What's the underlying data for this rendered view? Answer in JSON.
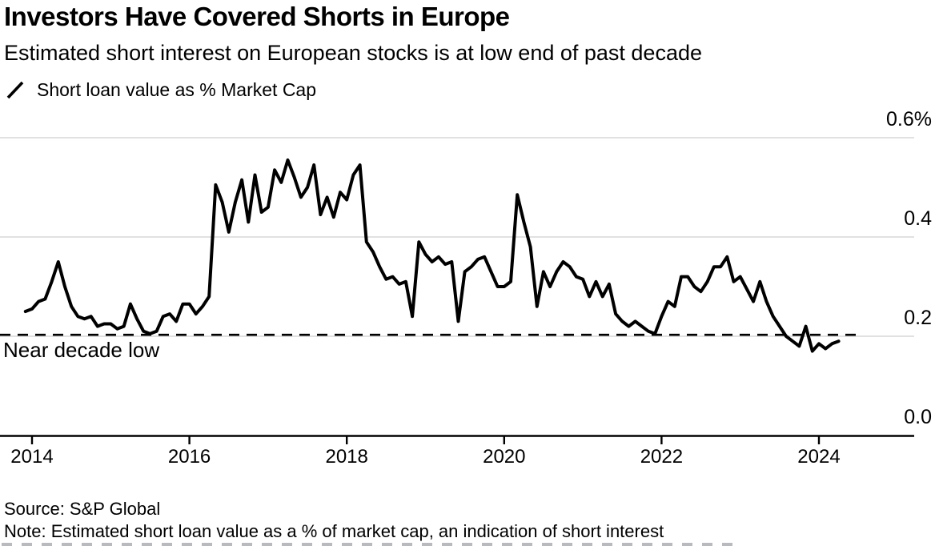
{
  "header": {
    "title": "Investors Have Covered Shorts in Europe",
    "subtitle": "Estimated short interest on European stocks is at low end of past decade"
  },
  "legend": {
    "label": "Short loan value as % Market Cap",
    "glyph": "slash-line-mark"
  },
  "annotation": {
    "label": "Near decade low",
    "value": 0.203
  },
  "footer": {
    "source": "Source: S&P Global",
    "note": "Note: Estimated short loan value as a % of market cap, an indication of short interest"
  },
  "chart_data": {
    "type": "line",
    "title": "Investors Have Covered Shorts in Europe",
    "series_name": "Short loan value as % Market Cap",
    "unit": "%",
    "frequency": "monthly",
    "start": {
      "year": 2013,
      "month": 12
    },
    "values": [
      0.25,
      0.255,
      0.27,
      0.275,
      0.31,
      0.35,
      0.3,
      0.26,
      0.24,
      0.235,
      0.24,
      0.22,
      0.225,
      0.225,
      0.215,
      0.22,
      0.265,
      0.235,
      0.21,
      0.205,
      0.21,
      0.24,
      0.245,
      0.23,
      0.265,
      0.265,
      0.245,
      0.26,
      0.28,
      0.505,
      0.47,
      0.41,
      0.47,
      0.515,
      0.43,
      0.525,
      0.45,
      0.46,
      0.535,
      0.51,
      0.555,
      0.52,
      0.48,
      0.5,
      0.545,
      0.445,
      0.48,
      0.44,
      0.49,
      0.475,
      0.525,
      0.545,
      0.39,
      0.37,
      0.34,
      0.315,
      0.32,
      0.305,
      0.31,
      0.24,
      0.39,
      0.365,
      0.35,
      0.36,
      0.345,
      0.35,
      0.23,
      0.33,
      0.34,
      0.355,
      0.36,
      0.33,
      0.3,
      0.3,
      0.31,
      0.485,
      0.43,
      0.38,
      0.26,
      0.33,
      0.3,
      0.33,
      0.35,
      0.34,
      0.32,
      0.315,
      0.28,
      0.31,
      0.28,
      0.305,
      0.245,
      0.23,
      0.22,
      0.23,
      0.22,
      0.21,
      0.205,
      0.24,
      0.27,
      0.26,
      0.32,
      0.32,
      0.3,
      0.29,
      0.31,
      0.34,
      0.34,
      0.36,
      0.31,
      0.32,
      0.295,
      0.27,
      0.31,
      0.27,
      0.24,
      0.22,
      0.2,
      0.19,
      0.18,
      0.22,
      0.17,
      0.185,
      0.175,
      0.185,
      0.19
    ],
    "y_ticks": [
      {
        "value": 0.0,
        "label": "0.0"
      },
      {
        "value": 0.2,
        "label": "0.2"
      },
      {
        "value": 0.4,
        "label": "0.4"
      },
      {
        "value": 0.6,
        "label": "0.6%"
      }
    ],
    "x_ticks": [
      {
        "value": 2014,
        "label": "2014"
      },
      {
        "value": 2016,
        "label": "2016"
      },
      {
        "value": 2018,
        "label": "2018"
      },
      {
        "value": 2020,
        "label": "2020"
      },
      {
        "value": 2022,
        "label": "2022"
      },
      {
        "value": 2024,
        "label": "2024"
      }
    ],
    "ylim": [
      0.0,
      0.65
    ],
    "grid": "horizontal",
    "legend_position": "top-left",
    "axis_label_position": "right",
    "reference_line": {
      "style": "dashed",
      "value": 0.203,
      "label": "Near decade low"
    },
    "colors": {
      "series_line": "#000000",
      "grid_line": "#d7d7d7",
      "axis_line": "#000000",
      "reference_line": "#000000",
      "text": "#000000",
      "background": "#ffffff"
    }
  }
}
